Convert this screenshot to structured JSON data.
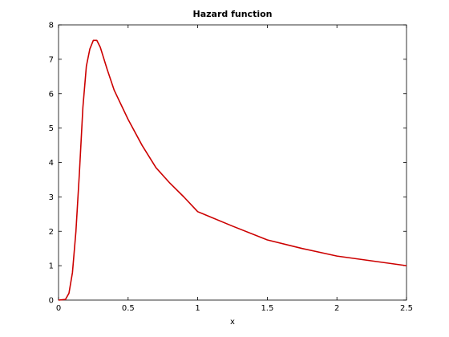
{
  "chart_data": {
    "type": "line",
    "title": "Hazard function",
    "xlabel": "x",
    "x": [
      0,
      0.05,
      0.075,
      0.1,
      0.125,
      0.15,
      0.175,
      0.2,
      0.225,
      0.25,
      0.275,
      0.3,
      0.35,
      0.4,
      0.5,
      0.6,
      0.7,
      0.8,
      0.9,
      1.0,
      1.25,
      1.5,
      1.75,
      2.0,
      2.25,
      2.5
    ],
    "series": [
      {
        "color": "#cc0000",
        "values": [
          0,
          0.02,
          0.2,
          0.8,
          2.0,
          3.7,
          5.6,
          6.8,
          7.3,
          7.55,
          7.55,
          7.35,
          6.7,
          6.1,
          5.25,
          4.5,
          3.85,
          3.4,
          3.0,
          2.57,
          2.15,
          1.75,
          1.5,
          1.28,
          1.14,
          1.0
        ]
      }
    ],
    "xlim": [
      0,
      2.5
    ],
    "ylim": [
      0,
      8
    ],
    "xticks": [
      0,
      0.5,
      1,
      1.5,
      2,
      2.5
    ],
    "yticks": [
      0,
      1,
      2,
      3,
      4,
      5,
      6,
      7,
      8
    ],
    "grid": false
  }
}
